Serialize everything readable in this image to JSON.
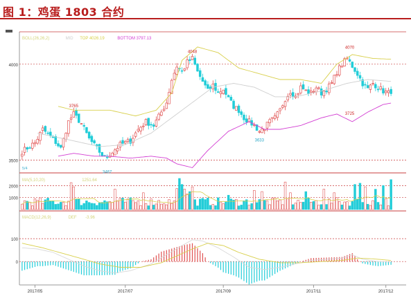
{
  "title": "图 1：鸡蛋 1803 合约",
  "chart_data": [
    {
      "type": "candlestick",
      "panel": "price",
      "legend": [
        {
          "label": "BOLL(26,26,2)",
          "color": "#d4d47a"
        },
        {
          "label": "MID",
          "color": "#cfcfcf"
        },
        {
          "label": "TOP",
          "value": "4026.19",
          "color": "#d8cf4a"
        },
        {
          "label": "BOTTOM",
          "value": "3797.13",
          "color": "#d23cd2"
        }
      ],
      "y_ticks": [
        3500,
        4000
      ],
      "ylim": [
        3440,
        4140
      ],
      "annotations": [
        {
          "label": "3765",
          "x": 20,
          "y": 3765
        },
        {
          "label": "3467",
          "x": 33,
          "y": 3467
        },
        {
          "label": "4048",
          "x": 66,
          "y": 4048
        },
        {
          "label": "3633",
          "x": 92,
          "y": 3633
        },
        {
          "label": "4070",
          "x": 127,
          "y": 4070
        },
        {
          "label": "3725",
          "x": 127,
          "y": 3725
        }
      ],
      "anchors": [
        [
          0,
          3545
        ],
        [
          5,
          3590
        ],
        [
          8,
          3660
        ],
        [
          12,
          3610
        ],
        [
          15,
          3560
        ],
        [
          18,
          3700
        ],
        [
          20,
          3740
        ],
        [
          23,
          3690
        ],
        [
          26,
          3610
        ],
        [
          29,
          3560
        ],
        [
          32,
          3510
        ],
        [
          34,
          3530
        ],
        [
          38,
          3580
        ],
        [
          42,
          3600
        ],
        [
          45,
          3660
        ],
        [
          48,
          3700
        ],
        [
          51,
          3680
        ],
        [
          54,
          3750
        ],
        [
          56,
          3800
        ],
        [
          58,
          3920
        ],
        [
          60,
          3990
        ],
        [
          62,
          3960
        ],
        [
          64,
          4010
        ],
        [
          66,
          4030
        ],
        [
          68,
          3960
        ],
        [
          70,
          3910
        ],
        [
          72,
          3860
        ],
        [
          74,
          3890
        ],
        [
          76,
          3850
        ],
        [
          78,
          3870
        ],
        [
          80,
          3820
        ],
        [
          82,
          3780
        ],
        [
          84,
          3760
        ],
        [
          86,
          3720
        ],
        [
          88,
          3700
        ],
        [
          90,
          3680
        ],
        [
          92,
          3650
        ],
        [
          94,
          3670
        ],
        [
          96,
          3700
        ],
        [
          98,
          3720
        ],
        [
          100,
          3760
        ],
        [
          102,
          3820
        ],
        [
          104,
          3860
        ],
        [
          106,
          3830
        ],
        [
          108,
          3880
        ],
        [
          110,
          3860
        ],
        [
          112,
          3850
        ],
        [
          114,
          3880
        ],
        [
          116,
          3850
        ],
        [
          118,
          3870
        ],
        [
          120,
          3900
        ],
        [
          122,
          3960
        ],
        [
          124,
          4000
        ],
        [
          126,
          4030
        ],
        [
          128,
          3990
        ],
        [
          130,
          3950
        ],
        [
          132,
          3900
        ],
        [
          134,
          3870
        ],
        [
          136,
          3900
        ],
        [
          138,
          3880
        ],
        [
          140,
          3860
        ],
        [
          142,
          3850
        ],
        [
          143,
          3860
        ]
      ],
      "mid_line": [
        [
          6,
          3640
        ],
        [
          20,
          3600
        ],
        [
          30,
          3570
        ],
        [
          40,
          3580
        ],
        [
          50,
          3640
        ],
        [
          58,
          3720
        ],
        [
          66,
          3800
        ],
        [
          74,
          3880
        ],
        [
          82,
          3900
        ],
        [
          90,
          3880
        ],
        [
          98,
          3830
        ],
        [
          106,
          3830
        ],
        [
          116,
          3860
        ],
        [
          126,
          3900
        ],
        [
          134,
          3920
        ],
        [
          143,
          3910
        ]
      ],
      "top_line": [
        [
          14,
          3780
        ],
        [
          20,
          3760
        ],
        [
          34,
          3760
        ],
        [
          44,
          3730
        ],
        [
          52,
          3760
        ],
        [
          58,
          3850
        ],
        [
          62,
          4020
        ],
        [
          68,
          4090
        ],
        [
          76,
          4060
        ],
        [
          84,
          3980
        ],
        [
          92,
          3950
        ],
        [
          100,
          3920
        ],
        [
          108,
          3920
        ],
        [
          116,
          3900
        ],
        [
          122,
          4000
        ],
        [
          128,
          4050
        ],
        [
          136,
          4030
        ],
        [
          143,
          4026
        ]
      ],
      "bottom_line": [
        [
          14,
          3520
        ],
        [
          20,
          3535
        ],
        [
          28,
          3520
        ],
        [
          34,
          3520
        ],
        [
          42,
          3510
        ],
        [
          50,
          3520
        ],
        [
          56,
          3510
        ],
        [
          60,
          3480
        ],
        [
          66,
          3460
        ],
        [
          72,
          3550
        ],
        [
          80,
          3650
        ],
        [
          88,
          3700
        ],
        [
          94,
          3660
        ],
        [
          100,
          3660
        ],
        [
          108,
          3680
        ],
        [
          116,
          3720
        ],
        [
          122,
          3740
        ],
        [
          128,
          3700
        ],
        [
          134,
          3750
        ],
        [
          140,
          3790
        ],
        [
          143,
          3797
        ]
      ]
    },
    {
      "type": "bar",
      "panel": "volume",
      "legend": [
        {
          "label": "MA(5,10,20)",
          "color": "#d4d47a"
        },
        {
          "label": "1251.64",
          "color": "#d4d47a"
        }
      ],
      "y_ticks": [
        1000,
        2000
      ],
      "ylim": [
        0,
        2600
      ],
      "highlights": [
        [
          19,
          2250
        ],
        [
          20,
          1900
        ],
        [
          36,
          1700
        ],
        [
          47,
          1400
        ],
        [
          60,
          1750
        ],
        [
          61,
          2600
        ],
        [
          62,
          2100
        ],
        [
          63,
          1700
        ],
        [
          64,
          1300
        ],
        [
          65,
          1500
        ],
        [
          66,
          1900
        ],
        [
          80,
          1200
        ],
        [
          90,
          1600
        ],
        [
          93,
          1500
        ],
        [
          102,
          2300
        ],
        [
          104,
          1400
        ],
        [
          110,
          1500
        ],
        [
          117,
          1700
        ],
        [
          121,
          1400
        ],
        [
          129,
          2100
        ],
        [
          131,
          2200
        ],
        [
          133,
          1900
        ],
        [
          137,
          1700
        ],
        [
          140,
          2000
        ],
        [
          143,
          2500
        ]
      ]
    },
    {
      "type": "bar",
      "panel": "macd",
      "legend": [
        {
          "label": "MACD(12,26,9)",
          "color": "#d4d47a"
        },
        {
          "label": "DEF",
          "color": "#d4d47a"
        },
        {
          "label": "-3.96",
          "color": "#d4d47a"
        }
      ],
      "y_ticks": [
        0,
        100
      ],
      "ylim": [
        -90,
        200
      ],
      "dif_anchors": [
        [
          0,
          60
        ],
        [
          6,
          55
        ],
        [
          12,
          40
        ],
        [
          18,
          10
        ],
        [
          24,
          -20
        ],
        [
          30,
          -40
        ],
        [
          36,
          -50
        ],
        [
          42,
          -40
        ],
        [
          50,
          -10
        ],
        [
          56,
          30
        ],
        [
          62,
          70
        ],
        [
          66,
          95
        ],
        [
          70,
          90
        ],
        [
          76,
          60
        ],
        [
          82,
          20
        ],
        [
          88,
          -25
        ],
        [
          94,
          -35
        ],
        [
          100,
          -25
        ],
        [
          106,
          -10
        ],
        [
          112,
          5
        ],
        [
          118,
          10
        ],
        [
          124,
          15
        ],
        [
          128,
          30
        ],
        [
          132,
          10
        ],
        [
          138,
          0
        ],
        [
          143,
          -2
        ]
      ],
      "dea_anchors": [
        [
          0,
          80
        ],
        [
          8,
          60
        ],
        [
          16,
          35
        ],
        [
          24,
          10
        ],
        [
          30,
          -10
        ],
        [
          38,
          -25
        ],
        [
          46,
          -25
        ],
        [
          54,
          -5
        ],
        [
          60,
          25
        ],
        [
          66,
          55
        ],
        [
          72,
          80
        ],
        [
          78,
          70
        ],
        [
          84,
          40
        ],
        [
          92,
          10
        ],
        [
          100,
          -5
        ],
        [
          108,
          -5
        ],
        [
          116,
          0
        ],
        [
          124,
          5
        ],
        [
          130,
          15
        ],
        [
          136,
          12
        ],
        [
          143,
          5
        ]
      ]
    }
  ],
  "x_ticks": [
    {
      "label": "2017/05",
      "x": 5
    },
    {
      "label": "2017/07",
      "x": 40
    },
    {
      "label": "2017/09",
      "x": 78
    },
    {
      "label": "2017/11",
      "x": 113
    },
    {
      "label": "2017/12",
      "x": 141
    }
  ],
  "colors": {
    "up": "#e05050",
    "down": "#22cdd8",
    "mid": "#cfcfcf",
    "top": "#d8cf4a",
    "bottom": "#d23cd2",
    "grid": "#c83c3c"
  }
}
